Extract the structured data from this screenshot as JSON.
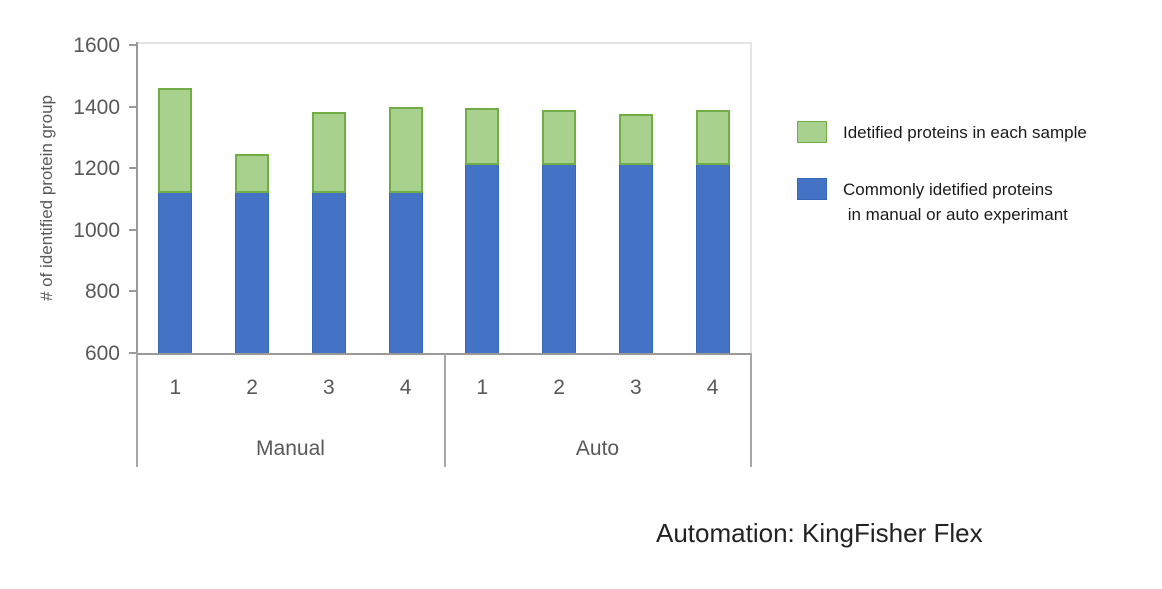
{
  "chart_data": {
    "type": "bar",
    "stacked": true,
    "title": "",
    "xlabel": "",
    "ylabel": "# of identified protein group",
    "ylim": [
      600,
      1600
    ],
    "ytick_interval": 200,
    "yticks": [
      1600,
      1400,
      1200,
      1000,
      800,
      600
    ],
    "grid": false,
    "legend_position": "right",
    "group_labels": [
      "Manual",
      "Auto"
    ],
    "categories": [
      "1",
      "2",
      "3",
      "4",
      "1",
      "2",
      "3",
      "4"
    ],
    "series": [
      {
        "name": "Commonly idetified proteins in manual or auto experimant",
        "color": "#4472C4",
        "border_color": "#3668B8",
        "values": [
          1120,
          1120,
          1120,
          1120,
          1210,
          1210,
          1210,
          1210
        ]
      },
      {
        "name": "Idetified proteins in each sample",
        "color": "#A9D18E",
        "border_color": "#70AD47",
        "values": [
          1460,
          1245,
          1383,
          1400,
          1395,
          1390,
          1377,
          1390
        ]
      }
    ]
  },
  "legend": {
    "items": [
      {
        "swatch_color": "#A9D18E",
        "swatch_border": "#70AD47",
        "lines": [
          "Idetified proteins in each sample"
        ]
      },
      {
        "swatch_color": "#4472C4",
        "swatch_border": "#3668B8",
        "lines": [
          "Commonly idetified proteins",
          " in manual or auto experimant"
        ]
      }
    ]
  },
  "caption": {
    "text": "Automation: KingFisher Flex"
  }
}
